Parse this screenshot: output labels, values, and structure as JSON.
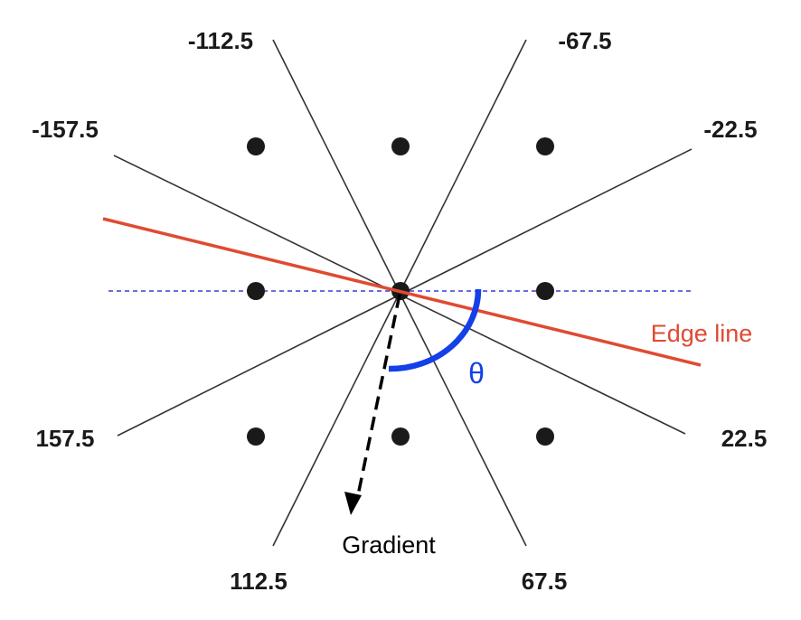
{
  "angle_labels": {
    "neg_112_5": "-112.5",
    "neg_67_5": "-67.5",
    "neg_157_5": "-157.5",
    "neg_22_5": "-22.5",
    "pos_157_5": "157.5",
    "pos_22_5": "22.5",
    "pos_112_5": "112.5",
    "pos_67_5": "67.5"
  },
  "edge_label": "Edge line",
  "gradient_label": "Gradient",
  "theta_label": "θ",
  "colors": {
    "edge_line": "#e04a32",
    "theta_arc": "#1340e8",
    "horizontal_reference": "#3b3bd6",
    "direction_lines": "#333333",
    "pixels": "#1a1a1a",
    "gradient_arrow": "#000000"
  }
}
